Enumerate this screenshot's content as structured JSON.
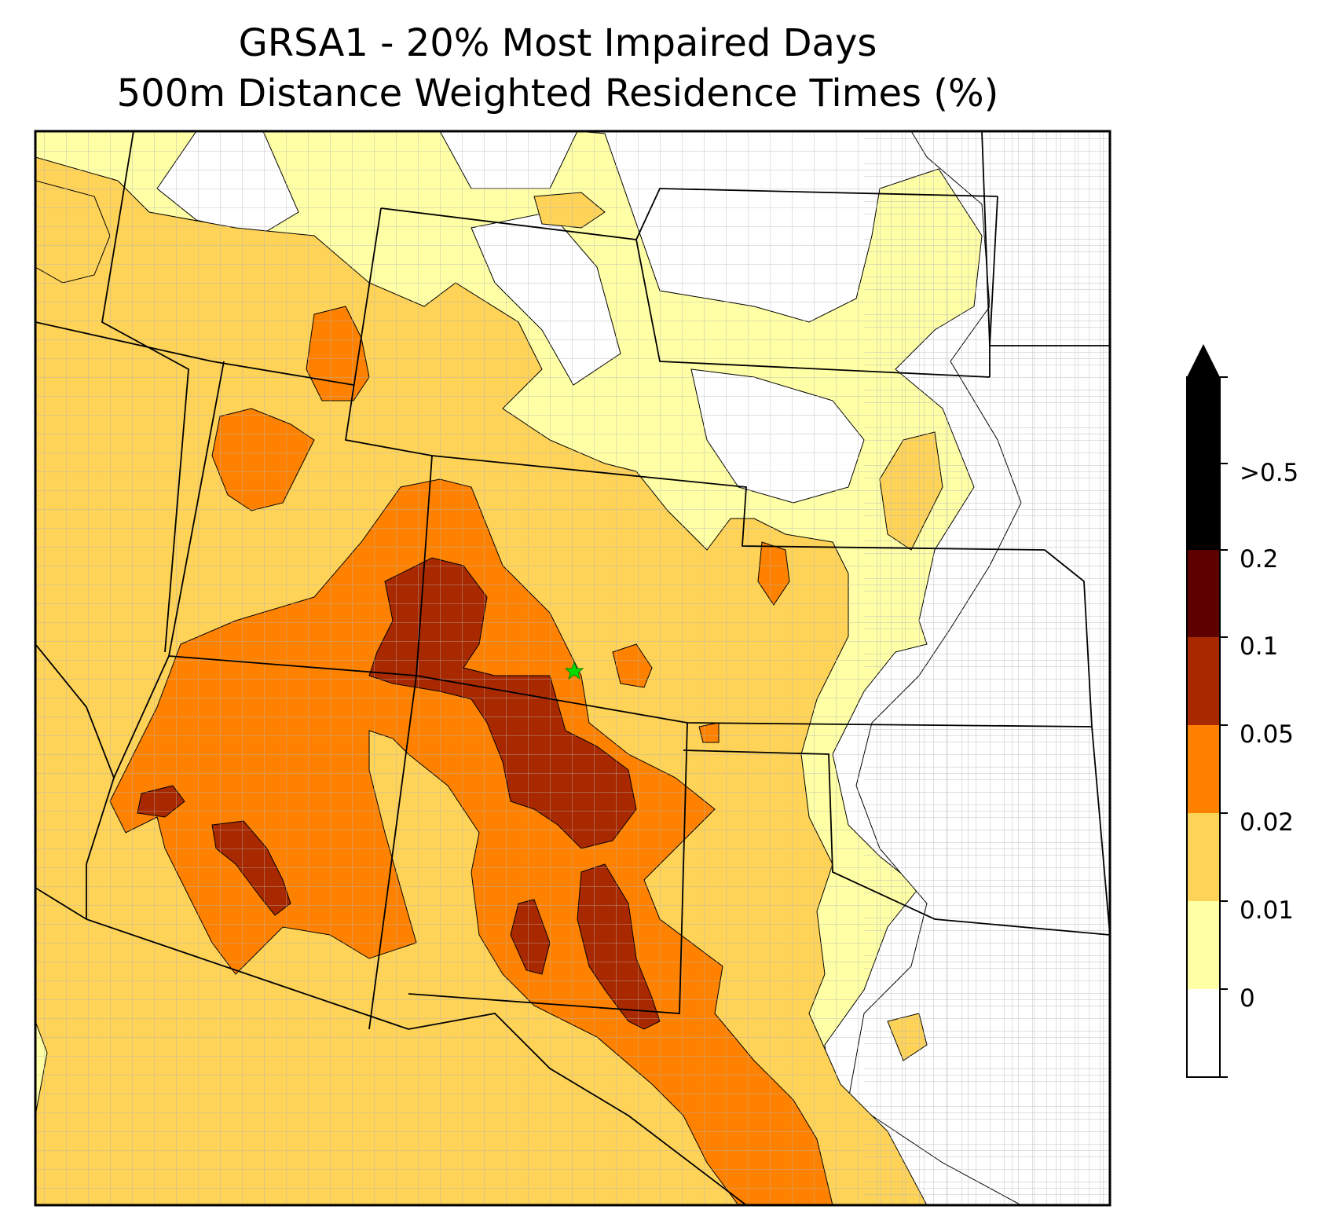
{
  "title": {
    "line1": "GRSA1 - 20% Most Impaired Days",
    "line2": "500m Distance Weighted Residence Times (%)"
  },
  "colorbar": {
    "levels": [
      {
        "label": "0",
        "color": "#ffffff"
      },
      {
        "label": "0.01",
        "color": "#ffffa6"
      },
      {
        "label": "0.02",
        "color": "#fed358"
      },
      {
        "label": "0.05",
        "color": "#fe8200"
      },
      {
        "label": "0.1",
        "color": "#a82800"
      },
      {
        "label": "0.2",
        "color": "#5c0000"
      },
      {
        "label": ">0.5",
        "color": "#000000"
      }
    ],
    "extend": "max"
  },
  "map": {
    "site_marker": {
      "name": "GRSA1",
      "symbol": "star",
      "color": "#00dd00"
    },
    "colors": {
      "c0": "#ffffff",
      "c1": "#ffffa6",
      "c2": "#fed358",
      "c3": "#fe8200",
      "c4": "#a82800",
      "state_border": "#000000",
      "county_border": "#a8a8a8",
      "frame": "#000000"
    }
  }
}
